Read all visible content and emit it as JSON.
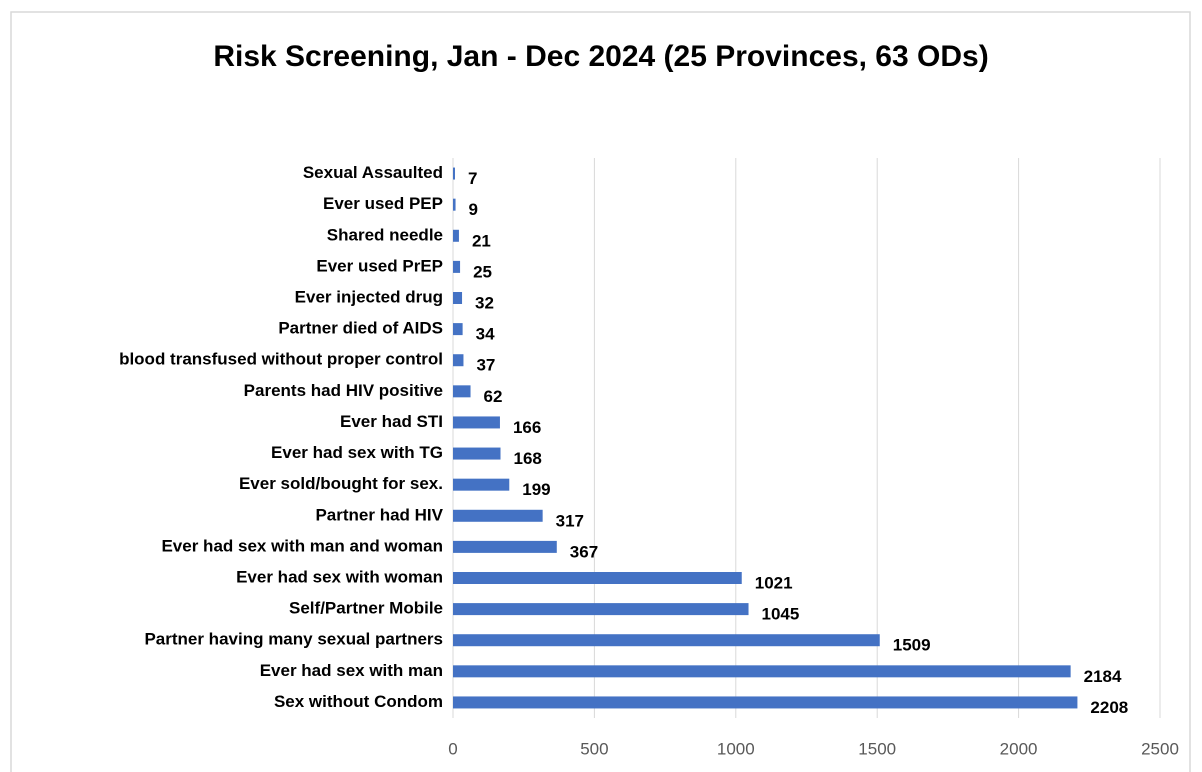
{
  "chart_data": {
    "type": "bar",
    "orientation": "horizontal",
    "title": "Risk Screening, Jan - Dec 2024 (25 Provinces, 63 ODs)",
    "categories": [
      "Sexual Assaulted",
      "Ever used PEP",
      "Shared needle",
      "Ever used PrEP",
      "Ever injected drug",
      "Partner died of AIDS",
      "blood transfused without proper control",
      "Parents had HIV positive",
      "Ever had STI",
      "Ever had sex with TG",
      "Ever sold/bought for sex.",
      "Partner had HIV",
      "Ever had sex with man and woman",
      "Ever had sex with woman",
      "Self/Partner Mobile",
      "Partner having many sexual partners",
      "Ever had sex with man",
      "Sex without Condom"
    ],
    "values": [
      7,
      9,
      21,
      25,
      32,
      34,
      37,
      62,
      166,
      168,
      199,
      317,
      367,
      1021,
      1045,
      1509,
      2184,
      2208
    ],
    "color": "#4472c4",
    "xlim": [
      0,
      2500
    ],
    "xticks": [
      0,
      500,
      1000,
      1500,
      2000,
      2500
    ],
    "grid": true
  }
}
